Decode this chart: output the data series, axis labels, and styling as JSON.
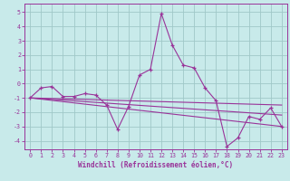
{
  "xlabel": "Windchill (Refroidissement éolien,°C)",
  "bg_color": "#c8eaea",
  "grid_color": "#a0c8c8",
  "line_color": "#993399",
  "ylim": [
    -4.6,
    5.6
  ],
  "xlim": [
    -0.5,
    23.5
  ],
  "yticks": [
    -4,
    -3,
    -2,
    -1,
    0,
    1,
    2,
    3,
    4,
    5
  ],
  "xticks": [
    0,
    1,
    2,
    3,
    4,
    5,
    6,
    7,
    8,
    9,
    10,
    11,
    12,
    13,
    14,
    15,
    16,
    17,
    18,
    19,
    20,
    21,
    22,
    23
  ],
  "series": [
    {
      "x": [
        0,
        1,
        2,
        3,
        4,
        5,
        6,
        7,
        8,
        9,
        10,
        11,
        12,
        13,
        14,
        15,
        16,
        17,
        18,
        19,
        20,
        21,
        22,
        23
      ],
      "y": [
        -1.0,
        -0.3,
        -0.2,
        -0.9,
        -0.9,
        -0.7,
        -0.8,
        -1.5,
        -3.2,
        -1.6,
        0.6,
        1.0,
        4.9,
        2.7,
        1.3,
        1.1,
        -0.3,
        -1.2,
        -4.4,
        -3.8,
        -2.3,
        -2.5,
        -1.7,
        -3.0
      ],
      "marker": true
    },
    {
      "x": [
        0,
        23
      ],
      "y": [
        -1.0,
        -1.5
      ],
      "marker": false
    },
    {
      "x": [
        0,
        23
      ],
      "y": [
        -1.0,
        -2.2
      ],
      "marker": false
    },
    {
      "x": [
        0,
        23
      ],
      "y": [
        -1.0,
        -3.0
      ],
      "marker": false
    }
  ],
  "xlabel_fontsize": 5.5,
  "tick_fontsize": 4.8,
  "ylabel_fontsize": 5.5
}
